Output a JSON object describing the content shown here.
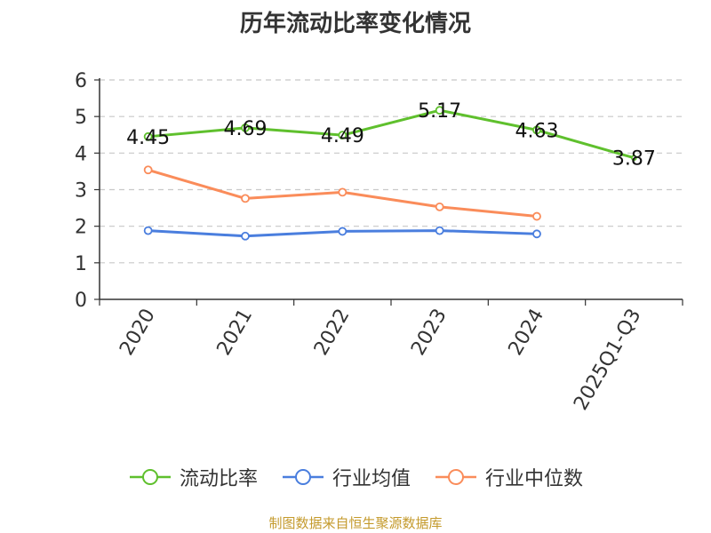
{
  "chart_data": {
    "type": "line",
    "title": "历年流动比率变化情况",
    "categories": [
      "2020",
      "2021",
      "2022",
      "2023",
      "2024",
      "2025Q1-Q3"
    ],
    "ylim": [
      0,
      6
    ],
    "yticks": [
      0,
      1,
      2,
      3,
      4,
      5,
      6
    ],
    "grid": true,
    "legend_position": "bottom",
    "series": [
      {
        "name": "流动比率",
        "color": "#5fc02d",
        "values": [
          4.45,
          4.69,
          4.49,
          5.17,
          4.63,
          3.87
        ],
        "labels": [
          "4.45",
          "4.69",
          "4.49",
          "5.17",
          "4.63",
          "3.87"
        ]
      },
      {
        "name": "行业均值",
        "color": "#4a7ede",
        "values": [
          1.88,
          1.73,
          1.86,
          1.88,
          1.79,
          null
        ]
      },
      {
        "name": "行业中位数",
        "color": "#fa8c5a",
        "values": [
          3.54,
          2.76,
          2.93,
          2.53,
          2.27,
          null
        ]
      }
    ]
  },
  "source_text": "制图数据来自恒生聚源数据库"
}
